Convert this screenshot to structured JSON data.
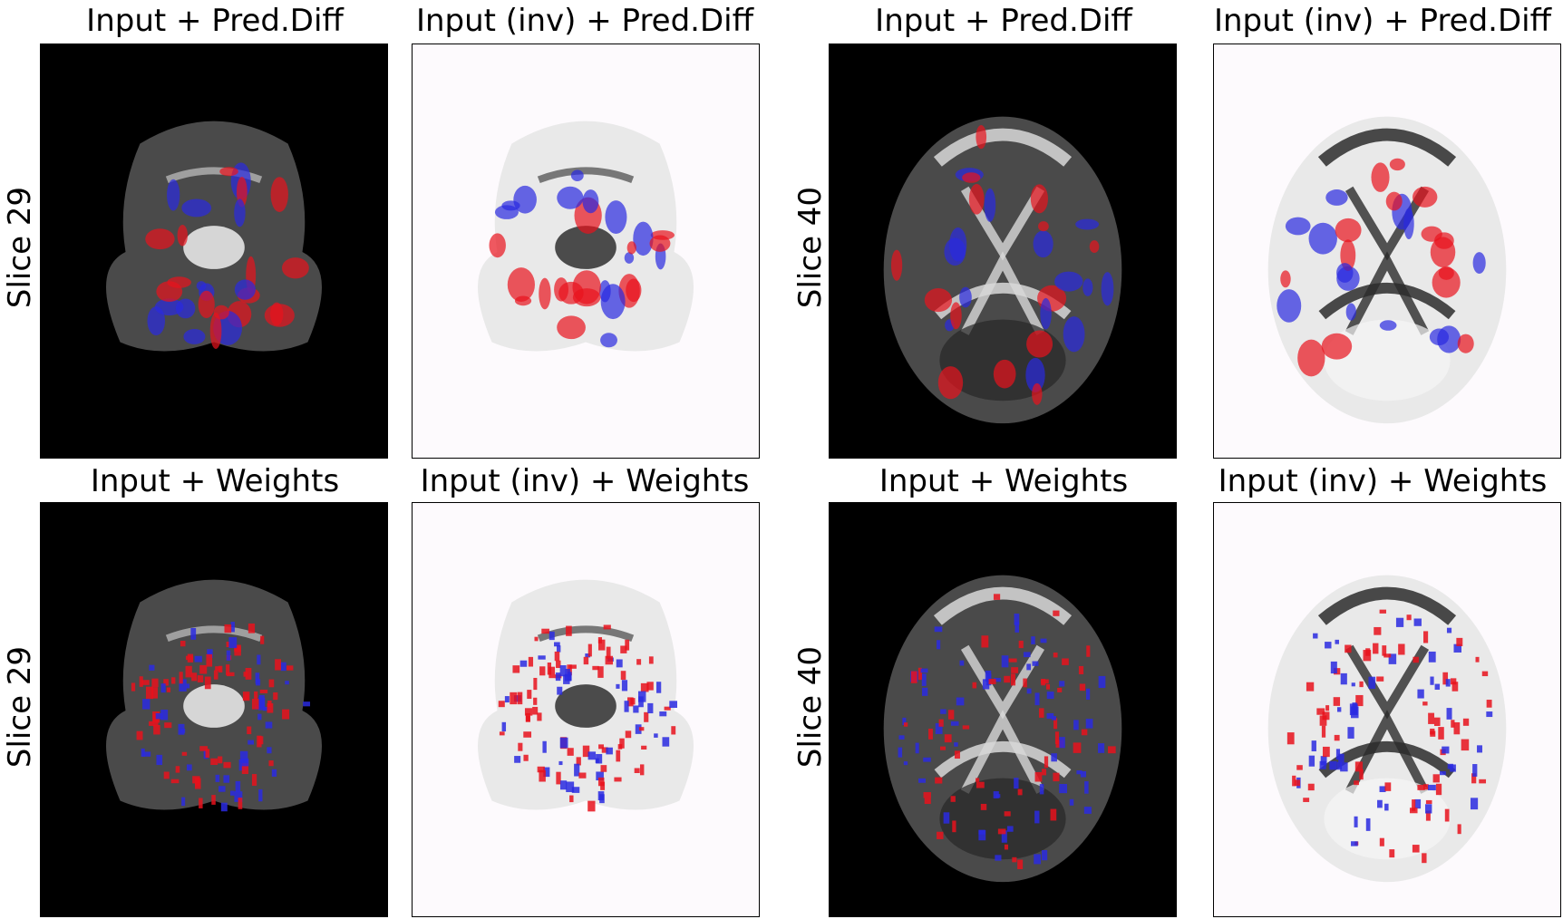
{
  "figure": {
    "row_labels": [
      "Slice 29",
      "Slice 29",
      "Slice 40",
      "Slice 40"
    ],
    "panels": [
      {
        "title": "Input + Pred.Diff",
        "row_label": "Slice 29",
        "background": "#000000",
        "tissue": "#bdbdbd"
      },
      {
        "title": "Input (inv) + Pred.Diff",
        "background": "#fdfafd",
        "tissue": "#3a3a3a"
      },
      {
        "title": "Input + Pred.Diff",
        "row_label": "Slice 40",
        "background": "#000000",
        "tissue": "#bdbdbd"
      },
      {
        "title": "Input (inv) + Pred.Diff",
        "background": "#fdfafd",
        "tissue": "#3a3a3a"
      },
      {
        "title": "Input + Weights",
        "row_label": "Slice 29",
        "background": "#000000",
        "tissue": "#bdbdbd"
      },
      {
        "title": "Input (inv) + Weights",
        "background": "#fdfafd",
        "tissue": "#3a3a3a"
      },
      {
        "title": "Input + Weights",
        "row_label": "Slice 40",
        "background": "#000000",
        "tissue": "#bdbdbd"
      },
      {
        "title": "Input (inv) + Weights",
        "background": "#fdfafd",
        "tissue": "#3a3a3a"
      }
    ],
    "overlay_colors": {
      "positive": "#e8121c",
      "negative": "#2a2ae0"
    }
  }
}
